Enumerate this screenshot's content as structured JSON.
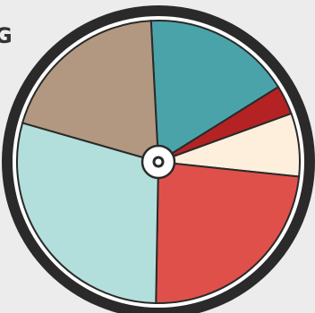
{
  "header": {
    "partial_text": "G"
  },
  "wheel": {
    "segments": [
      {
        "name": "teal-segment",
        "color": "#4ba3aa",
        "start_deg": -3,
        "end_deg": 58
      },
      {
        "name": "dark-red-segment",
        "color": "#b52224",
        "start_deg": 58,
        "end_deg": 70
      },
      {
        "name": "cream-segment",
        "color": "#fdefdc",
        "start_deg": 70,
        "end_deg": 96
      },
      {
        "name": "red-segment",
        "color": "#e0504a",
        "start_deg": 96,
        "end_deg": 181
      },
      {
        "name": "light-teal-segment",
        "color": "#b2dfdc",
        "start_deg": 181,
        "end_deg": 286
      },
      {
        "name": "taupe-segment",
        "color": "#b29880",
        "start_deg": 286,
        "end_deg": 357
      }
    ],
    "rim_color": "#2a2a2a",
    "divider_color": "#2a2a2a",
    "hub_color": "#ffffff"
  }
}
